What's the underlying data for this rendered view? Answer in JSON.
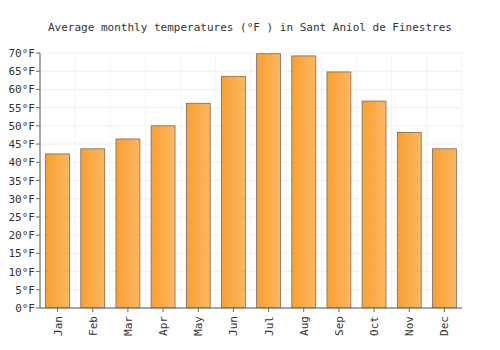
{
  "chart_data": {
    "type": "bar",
    "title": "Average monthly temperatures (°F ) in Sant Aniol de Finestres",
    "categories": [
      "Jan",
      "Feb",
      "Mar",
      "Apr",
      "May",
      "Jun",
      "Jul",
      "Aug",
      "Sep",
      "Oct",
      "Nov",
      "Dec"
    ],
    "values": [
      42.3,
      43.7,
      46.4,
      50.0,
      56.2,
      63.6,
      69.8,
      69.2,
      64.8,
      56.8,
      48.2,
      43.7
    ],
    "color": "#f9a030",
    "ylim": [
      0,
      70
    ],
    "yticks": [
      {
        "value": 0,
        "label": "0°F"
      },
      {
        "value": 5,
        "label": "5°F"
      },
      {
        "value": 10,
        "label": "10°F"
      },
      {
        "value": 15,
        "label": "15°F"
      },
      {
        "value": 20,
        "label": "20°F"
      },
      {
        "value": 25,
        "label": "25°F"
      },
      {
        "value": 30,
        "label": "30°F"
      },
      {
        "value": 35,
        "label": "35°F"
      },
      {
        "value": 40,
        "label": "40°F"
      },
      {
        "value": 45,
        "label": "45°F"
      },
      {
        "value": 50,
        "label": "50°F"
      },
      {
        "value": 55,
        "label": "55°F"
      },
      {
        "value": 60,
        "label": "60°F"
      },
      {
        "value": 65,
        "label": "65°F"
      },
      {
        "value": 70,
        "label": "70°F"
      }
    ],
    "grid": true
  }
}
